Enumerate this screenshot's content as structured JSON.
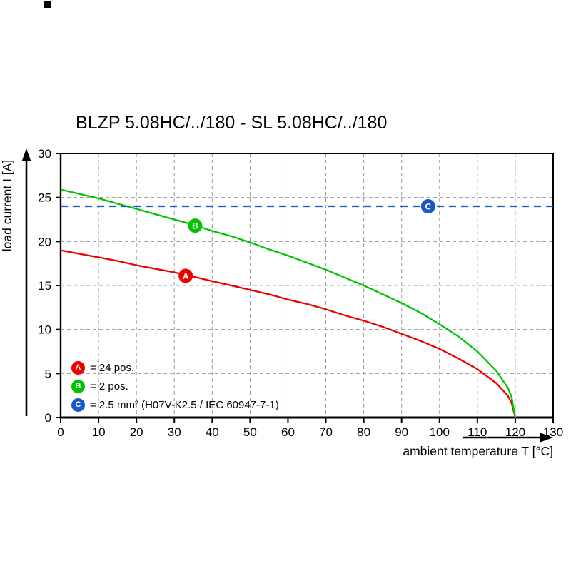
{
  "title": "BLZP 5.08HC/../180 - SL 5.08HC/../180",
  "chart_data": {
    "type": "line",
    "title": "BLZP 5.08HC/../180 - SL 5.08HC/../180",
    "xlabel": "ambient temperature T [°C]",
    "ylabel": "load current I [A]",
    "xlim": [
      0,
      130
    ],
    "ylim": [
      0,
      30
    ],
    "x_ticks": [
      0,
      10,
      20,
      30,
      40,
      50,
      60,
      70,
      80,
      90,
      100,
      110,
      120,
      130
    ],
    "y_ticks": [
      0,
      5,
      10,
      15,
      20,
      25,
      30
    ],
    "grid": "dashed",
    "legend_position": "lower-left",
    "series": [
      {
        "name": "A",
        "label": "= 24 pos.",
        "color": "#ee0000",
        "style": "solid",
        "x": [
          0,
          5,
          10,
          15,
          20,
          25,
          30,
          35,
          40,
          45,
          50,
          55,
          60,
          65,
          70,
          75,
          80,
          85,
          90,
          95,
          100,
          105,
          110,
          115,
          118,
          119,
          120
        ],
        "y": [
          19,
          18.6,
          18.2,
          17.8,
          17.3,
          16.9,
          16.5,
          16,
          15.5,
          15,
          14.5,
          14,
          13.4,
          12.9,
          12.3,
          11.6,
          11,
          10.3,
          9.5,
          8.7,
          7.8,
          6.7,
          5.5,
          3.9,
          2.5,
          1.7,
          0
        ],
        "marker": {
          "x": 33,
          "y": 16.1
        }
      },
      {
        "name": "B",
        "label": "= 2 pos.",
        "color": "#00c400",
        "style": "solid",
        "x": [
          0,
          5,
          10,
          15,
          20,
          25,
          30,
          35,
          40,
          45,
          50,
          55,
          60,
          65,
          70,
          75,
          80,
          85,
          90,
          95,
          100,
          105,
          110,
          115,
          118,
          119,
          120
        ],
        "y": [
          25.9,
          25.4,
          24.9,
          24.3,
          23.7,
          23.1,
          22.5,
          21.9,
          21.2,
          20.6,
          19.9,
          19.1,
          18.4,
          17.6,
          16.8,
          15.9,
          15,
          14,
          13,
          11.9,
          10.6,
          9.2,
          7.5,
          5.3,
          3.4,
          2.4,
          0
        ],
        "marker": {
          "x": 35.5,
          "y": 21.8
        }
      },
      {
        "name": "C",
        "label": "= 2.5 mm² (H07V-K2.5 / IEC 60947-7-1)",
        "color": "#1759c8",
        "style": "dashed",
        "x": [
          0,
          130
        ],
        "y": [
          24,
          24
        ],
        "marker": {
          "x": 97,
          "y": 24
        }
      }
    ]
  }
}
